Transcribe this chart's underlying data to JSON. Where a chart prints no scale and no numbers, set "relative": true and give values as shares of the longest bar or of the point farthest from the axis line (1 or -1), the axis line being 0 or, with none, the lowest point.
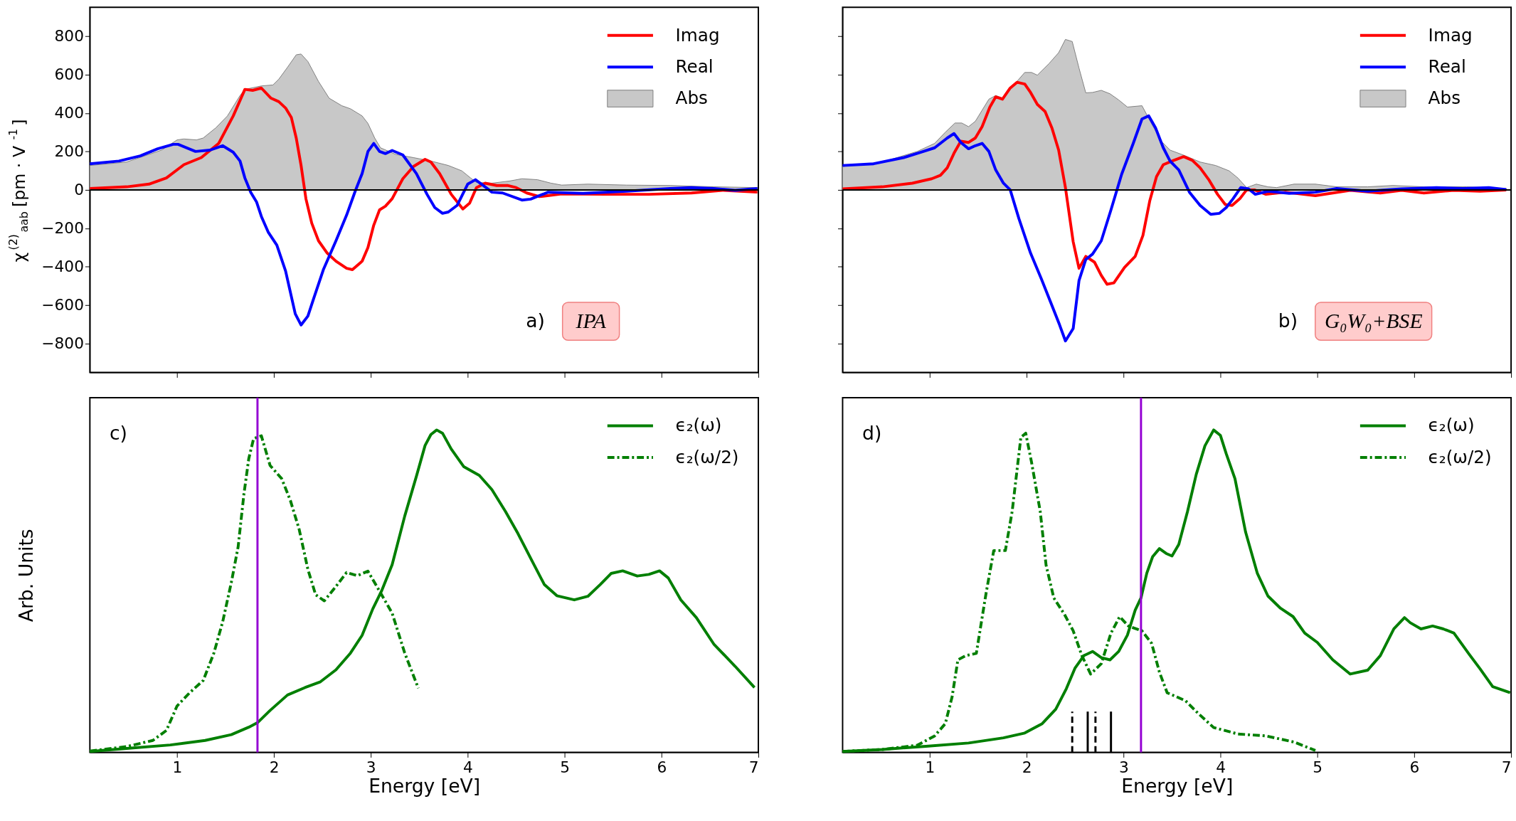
{
  "chart_data": [
    {
      "type": "line",
      "ylabel": "χ$^{(2)}$$_{aab}$[pm · V$^{-1}$]",
      "xlim": [
        0.1,
        7
      ],
      "ylim": [
        -950,
        950
      ],
      "xticks": [
        1,
        2,
        3,
        4,
        5,
        6,
        7
      ],
      "yticks": [
        -800,
        -600,
        -400,
        -200,
        0,
        200,
        400,
        600,
        800
      ],
      "tick_labels": "y",
      "grid": false,
      "legend": "top right",
      "marker": "none",
      "annotations": [
        "a)",
        "IPA"
      ],
      "ref_lines": [
        {
          "axis": "y",
          "value": 0,
          "color": "#000000"
        }
      ],
      "series": [
        {
          "name": "Abs",
          "type": "area",
          "color": "#c8c8c8",
          "x": [
            0.1,
            0.48,
            0.84,
            1.0,
            1.07,
            1.2,
            1.27,
            1.4,
            1.52,
            1.65,
            1.7,
            1.87,
            1.99,
            2.05,
            2.14,
            2.23,
            2.28,
            2.35,
            2.46,
            2.57,
            2.7,
            2.79,
            2.91,
            2.97,
            3.04,
            3.1,
            3.26,
            3.44,
            3.62,
            3.8,
            3.94,
            4.03,
            4.09,
            4.25,
            4.43,
            4.56,
            4.72,
            4.86,
            4.97,
            5.24,
            5.64,
            6.09,
            6.54,
            6.99
          ],
          "values": [
            127,
            145,
            207,
            260,
            265,
            260,
            270,
            323,
            385,
            491,
            523,
            541,
            546,
            576,
            638,
            703,
            707,
            668,
            564,
            477,
            438,
            422,
            385,
            346,
            270,
            219,
            184,
            168,
            150,
            127,
            99,
            62,
            39,
            35,
            46,
            58,
            53,
            35,
            25,
            30,
            25,
            23,
            16,
            12
          ]
        },
        {
          "name": "Imag",
          "type": "line",
          "color": "#ff0000",
          "x": [
            0.1,
            0.48,
            0.71,
            0.89,
            1.07,
            1.25,
            1.43,
            1.58,
            1.7,
            1.78,
            1.87,
            1.97,
            2.05,
            2.12,
            2.18,
            2.23,
            2.28,
            2.33,
            2.39,
            2.46,
            2.55,
            2.64,
            2.75,
            2.81,
            2.91,
            2.97,
            3.03,
            3.09,
            3.15,
            3.22,
            3.33,
            3.44,
            3.56,
            3.62,
            3.71,
            3.83,
            3.95,
            4.02,
            4.09,
            4.18,
            4.3,
            4.41,
            4.5,
            4.61,
            4.74,
            4.97,
            5.42,
            5.87,
            6.31,
            6.63,
            6.99
          ],
          "values": [
            7,
            16,
            30,
            62,
            131,
            168,
            242,
            385,
            523,
            518,
            530,
            477,
            459,
            426,
            376,
            270,
            127,
            -46,
            -173,
            -265,
            -329,
            -371,
            -408,
            -415,
            -371,
            -300,
            -184,
            -104,
            -85,
            -46,
            58,
            122,
            159,
            145,
            85,
            -23,
            -99,
            -69,
            12,
            35,
            23,
            23,
            12,
            -16,
            -35,
            -21,
            -23,
            -23,
            -16,
            -2,
            -12
          ]
        },
        {
          "name": "Real",
          "type": "line",
          "color": "#0000ff",
          "x": [
            0.1,
            0.4,
            0.62,
            0.8,
            0.96,
            1.01,
            1.19,
            1.34,
            1.47,
            1.58,
            1.65,
            1.7,
            1.76,
            1.82,
            1.87,
            1.94,
            2.03,
            2.12,
            2.22,
            2.28,
            2.35,
            2.41,
            2.51,
            2.64,
            2.75,
            2.84,
            2.91,
            2.97,
            3.03,
            3.09,
            3.15,
            3.22,
            3.33,
            3.47,
            3.58,
            3.66,
            3.74,
            3.8,
            3.89,
            4.0,
            4.08,
            4.16,
            4.25,
            4.36,
            4.56,
            4.65,
            4.83,
            5.19,
            5.64,
            6.09,
            6.31,
            6.54,
            6.76,
            6.99
          ],
          "values": [
            136,
            150,
            177,
            214,
            237,
            237,
            200,
            207,
            230,
            196,
            150,
            62,
            -12,
            -62,
            -138,
            -219,
            -288,
            -422,
            -645,
            -703,
            -657,
            -565,
            -415,
            -265,
            -131,
            -5,
            85,
            200,
            242,
            200,
            189,
            205,
            182,
            85,
            -23,
            -92,
            -122,
            -115,
            -81,
            30,
            53,
            23,
            -12,
            -16,
            -53,
            -48,
            -12,
            -18,
            -7,
            7,
            12,
            7,
            -2,
            7
          ]
        }
      ]
    },
    {
      "type": "line",
      "xlim": [
        0.1,
        7
      ],
      "ylim": [
        -950,
        950
      ],
      "xticks": [
        1,
        2,
        3,
        4,
        5,
        6,
        7
      ],
      "yticks": [
        -800,
        -600,
        -400,
        -200,
        0,
        200,
        400,
        600,
        800
      ],
      "tick_labels": false,
      "grid": false,
      "legend": "top right",
      "marker": "none",
      "annotations": [
        "b)",
        "G₀W₀+BSE"
      ],
      "ref_lines": [
        {
          "axis": "y",
          "value": 0,
          "color": "#000000"
        }
      ],
      "series": [
        {
          "name": "Abs",
          "type": "area",
          "color": "#c8c8c8",
          "x": [
            0.1,
            0.51,
            0.87,
            1.05,
            1.16,
            1.26,
            1.33,
            1.4,
            1.47,
            1.61,
            1.68,
            1.76,
            1.84,
            1.98,
            2.05,
            2.11,
            2.23,
            2.33,
            2.4,
            2.47,
            2.54,
            2.61,
            2.68,
            2.77,
            2.86,
            2.95,
            3.04,
            3.19,
            3.28,
            3.39,
            3.48,
            3.64,
            3.79,
            3.95,
            4.09,
            4.18,
            4.27,
            4.37,
            4.49,
            4.58,
            4.76,
            4.98,
            5.2,
            5.52,
            5.78,
            6.1,
            6.54,
            6.95
          ],
          "values": [
            122,
            145,
            200,
            242,
            300,
            348,
            348,
            329,
            357,
            472,
            491,
            477,
            530,
            611,
            611,
            597,
            657,
            714,
            783,
            772,
            634,
            505,
            507,
            518,
            500,
            468,
            431,
            438,
            353,
            253,
            207,
            177,
            145,
            127,
            99,
            62,
            12,
            30,
            16,
            12,
            30,
            30,
            16,
            16,
            23,
            16,
            16,
            7
          ]
        },
        {
          "name": "Imag",
          "type": "line",
          "color": "#ff0000",
          "x": [
            0.1,
            0.51,
            0.82,
            1.02,
            1.11,
            1.18,
            1.25,
            1.32,
            1.4,
            1.47,
            1.54,
            1.62,
            1.68,
            1.75,
            1.83,
            1.9,
            1.98,
            2.04,
            2.11,
            2.19,
            2.26,
            2.33,
            2.4,
            2.48,
            2.54,
            2.61,
            2.7,
            2.77,
            2.83,
            2.9,
            3.01,
            3.12,
            3.2,
            3.27,
            3.34,
            3.41,
            3.5,
            3.62,
            3.71,
            3.79,
            3.88,
            3.97,
            4.05,
            4.12,
            4.2,
            4.27,
            4.35,
            4.47,
            4.67,
            4.98,
            5.34,
            5.65,
            5.87,
            6.1,
            6.41,
            6.68,
            6.95
          ],
          "values": [
            5,
            16,
            35,
            58,
            76,
            115,
            191,
            253,
            247,
            270,
            329,
            431,
            484,
            472,
            530,
            560,
            551,
            507,
            445,
            408,
            323,
            207,
            12,
            -270,
            -408,
            -346,
            -376,
            -445,
            -491,
            -484,
            -403,
            -346,
            -237,
            -58,
            69,
            131,
            150,
            173,
            154,
            115,
            53,
            -23,
            -76,
            -81,
            -46,
            0,
            0,
            -23,
            -12,
            -30,
            -2,
            -16,
            -2,
            -16,
            -2,
            -7,
            0
          ]
        },
        {
          "name": "Real",
          "type": "line",
          "color": "#0000ff",
          "x": [
            0.1,
            0.42,
            0.73,
            0.91,
            1.05,
            1.18,
            1.25,
            1.32,
            1.4,
            1.47,
            1.54,
            1.61,
            1.68,
            1.76,
            1.83,
            1.92,
            2.04,
            2.15,
            2.25,
            2.34,
            2.4,
            2.48,
            2.54,
            2.61,
            2.68,
            2.77,
            2.87,
            2.98,
            3.1,
            3.19,
            3.26,
            3.33,
            3.41,
            3.48,
            3.57,
            3.68,
            3.79,
            3.9,
            3.99,
            4.06,
            4.13,
            4.21,
            4.29,
            4.36,
            4.49,
            4.71,
            4.98,
            5.2,
            5.52,
            5.87,
            6.23,
            6.5,
            6.77,
            6.95
          ],
          "values": [
            127,
            136,
            168,
            196,
            219,
            270,
            293,
            247,
            214,
            230,
            242,
            200,
            104,
            35,
            0,
            -150,
            -329,
            -461,
            -588,
            -703,
            -786,
            -721,
            -472,
            -362,
            -334,
            -265,
            -104,
            81,
            242,
            369,
            385,
            323,
            219,
            150,
            104,
            -12,
            -81,
            -127,
            -122,
            -92,
            -46,
            12,
            5,
            -23,
            -7,
            -18,
            -12,
            7,
            -7,
            5,
            12,
            7,
            12,
            2
          ]
        }
      ]
    },
    {
      "type": "line",
      "relative": true,
      "xlabel": "Energy [eV]",
      "ylabel": "Arb. Units",
      "xlim": [
        0.1,
        7
      ],
      "xticks": [
        1,
        2,
        3,
        4,
        5,
        6,
        7
      ],
      "tick_labels": "x",
      "grid": false,
      "legend": "top right",
      "marker": "none",
      "annotations": [
        "c)"
      ],
      "ref_lines": [
        {
          "axis": "x",
          "value": 1.83,
          "color": "#9400d3"
        }
      ],
      "series": [
        {
          "name": "ϵ₂(ω)",
          "type": "line",
          "color": "#007f00",
          "line_style": "solid",
          "x": [
            0.1,
            0.48,
            0.93,
            1.29,
            1.56,
            1.74,
            1.83,
            1.96,
            2.14,
            2.32,
            2.48,
            2.64,
            2.79,
            2.91,
            3.02,
            3.11,
            3.22,
            3.35,
            3.47,
            3.56,
            3.62,
            3.68,
            3.74,
            3.83,
            3.96,
            4.12,
            4.25,
            4.39,
            4.52,
            4.66,
            4.79,
            4.92,
            5.1,
            5.24,
            5.37,
            5.48,
            5.6,
            5.75,
            5.87,
            5.98,
            6.07,
            6.2,
            6.36,
            6.54,
            6.76,
            6.96
          ],
          "values": [
            0.003,
            0.012,
            0.023,
            0.037,
            0.055,
            0.078,
            0.092,
            0.13,
            0.178,
            0.201,
            0.219,
            0.256,
            0.308,
            0.363,
            0.445,
            0.5,
            0.582,
            0.733,
            0.856,
            0.952,
            0.986,
            1.0,
            0.99,
            0.941,
            0.886,
            0.859,
            0.815,
            0.747,
            0.678,
            0.596,
            0.521,
            0.486,
            0.473,
            0.484,
            0.521,
            0.555,
            0.563,
            0.547,
            0.552,
            0.563,
            0.541,
            0.473,
            0.418,
            0.336,
            0.267,
            0.201
          ]
        },
        {
          "name": "ϵ₂(ω/2)",
          "type": "line",
          "color": "#007f00",
          "line_style": "dotted",
          "x": [
            0.1,
            0.48,
            0.75,
            0.89,
            1.0,
            1.13,
            1.27,
            1.38,
            1.47,
            1.56,
            1.63,
            1.69,
            1.74,
            1.79,
            1.87,
            1.96,
            2.08,
            2.17,
            2.26,
            2.35,
            2.43,
            2.52,
            2.63,
            2.75,
            2.86,
            2.97,
            3.09,
            3.22,
            3.35,
            3.49
          ],
          "values": [
            0.004,
            0.018,
            0.037,
            0.068,
            0.144,
            0.185,
            0.223,
            0.308,
            0.404,
            0.527,
            0.637,
            0.801,
            0.911,
            0.973,
            0.982,
            0.89,
            0.849,
            0.781,
            0.692,
            0.568,
            0.489,
            0.47,
            0.511,
            0.558,
            0.548,
            0.562,
            0.5,
            0.432,
            0.308,
            0.199
          ]
        }
      ]
    },
    {
      "type": "line",
      "relative": true,
      "xlabel": "Energy [eV]",
      "xlim": [
        0.1,
        7
      ],
      "xticks": [
        1,
        2,
        3,
        4,
        5,
        6,
        7
      ],
      "tick_labels": "x",
      "grid": false,
      "legend": "top right",
      "marker": "none",
      "annotations": [
        "d)"
      ],
      "ref_lines": [
        {
          "axis": "x",
          "value": 3.18,
          "color": "#9400d3"
        },
        {
          "axis": "x",
          "value": 2.47,
          "color": "#000000",
          "line_style": "dashed"
        },
        {
          "axis": "x",
          "value": 2.63,
          "color": "#000000",
          "line_style": "solid"
        },
        {
          "axis": "x",
          "value": 2.71,
          "color": "#000000",
          "line_style": "dashed"
        },
        {
          "axis": "x",
          "value": 2.87,
          "color": "#000000",
          "line_style": "solid"
        }
      ],
      "series": [
        {
          "name": "ϵ₂(ω)",
          "type": "line",
          "color": "#007f00",
          "line_style": "solid",
          "x": [
            0.1,
            0.51,
            0.96,
            1.4,
            1.76,
            1.98,
            2.16,
            2.3,
            2.41,
            2.5,
            2.59,
            2.68,
            2.77,
            2.86,
            2.95,
            3.04,
            3.12,
            3.18,
            3.24,
            3.3,
            3.37,
            3.44,
            3.5,
            3.57,
            3.66,
            3.75,
            3.84,
            3.93,
            4.0,
            4.06,
            4.15,
            4.26,
            4.38,
            4.49,
            4.62,
            4.75,
            4.87,
            5.0,
            5.16,
            5.34,
            5.52,
            5.65,
            5.79,
            5.9,
            5.96,
            6.07,
            6.19,
            6.3,
            6.41,
            6.57,
            6.68,
            6.81,
            6.99
          ],
          "values": [
            0.003,
            0.009,
            0.019,
            0.029,
            0.045,
            0.06,
            0.089,
            0.134,
            0.198,
            0.262,
            0.3,
            0.313,
            0.294,
            0.287,
            0.313,
            0.364,
            0.441,
            0.479,
            0.556,
            0.607,
            0.632,
            0.617,
            0.609,
            0.645,
            0.747,
            0.862,
            0.951,
            1.0,
            0.983,
            0.926,
            0.849,
            0.683,
            0.556,
            0.485,
            0.447,
            0.421,
            0.37,
            0.341,
            0.287,
            0.243,
            0.255,
            0.3,
            0.383,
            0.418,
            0.402,
            0.383,
            0.392,
            0.383,
            0.37,
            0.303,
            0.259,
            0.204,
            0.185
          ]
        },
        {
          "name": "ϵ₂(ω/2)",
          "type": "line",
          "color": "#007f00",
          "line_style": "dotted",
          "x": [
            0.1,
            0.51,
            0.87,
            1.05,
            1.16,
            1.23,
            1.29,
            1.37,
            1.48,
            1.58,
            1.66,
            1.78,
            1.85,
            1.94,
            1.99,
            2.05,
            2.14,
            2.2,
            2.28,
            2.39,
            2.48,
            2.57,
            2.66,
            2.77,
            2.87,
            2.96,
            3.05,
            3.19,
            3.29,
            3.37,
            3.45,
            3.64,
            3.77,
            3.93,
            4.18,
            4.47,
            4.76,
            4.98
          ],
          "values": [
            0.003,
            0.009,
            0.022,
            0.051,
            0.089,
            0.172,
            0.287,
            0.3,
            0.307,
            0.492,
            0.626,
            0.626,
            0.747,
            0.977,
            0.99,
            0.9,
            0.747,
            0.581,
            0.479,
            0.428,
            0.377,
            0.3,
            0.243,
            0.275,
            0.37,
            0.421,
            0.392,
            0.377,
            0.338,
            0.249,
            0.185,
            0.16,
            0.121,
            0.077,
            0.057,
            0.051,
            0.032,
            0.006
          ]
        }
      ]
    }
  ]
}
